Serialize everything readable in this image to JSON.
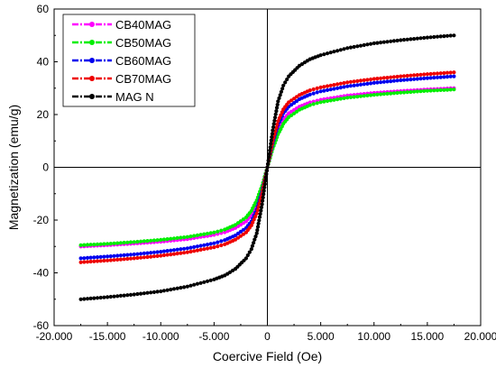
{
  "chart_data": {
    "type": "scatter",
    "xlabel": "Coercive Field (Oe)",
    "ylabel": "Magnetization (emu/g)",
    "xlim": [
      -20000,
      20000
    ],
    "ylim": [
      -60,
      60
    ],
    "x_ticks": [
      -20000,
      -15000,
      -10000,
      -5000,
      0,
      5000,
      10000,
      15000,
      20000
    ],
    "x_tick_labels": [
      "-20.000",
      "-15.000",
      "-10.000",
      "-5.000",
      "0",
      "5.000",
      "10.000",
      "15.000",
      "20.000"
    ],
    "y_ticks": [
      -60,
      -40,
      -20,
      0,
      20,
      40,
      60
    ],
    "y_tick_labels": [
      "-60",
      "-40",
      "-20",
      "0",
      "20",
      "40",
      "60"
    ],
    "zero_lines": true,
    "legend_position": "top-left",
    "series": [
      {
        "name": "CB40MAG",
        "color": "#ff00ff",
        "points": [
          [
            -17500,
            -30
          ],
          [
            -15000,
            -29.5
          ],
          [
            -12500,
            -28.9
          ],
          [
            -10000,
            -28.2
          ],
          [
            -7500,
            -27.2
          ],
          [
            -5000,
            -25.6
          ],
          [
            -4000,
            -24.6
          ],
          [
            -3000,
            -23
          ],
          [
            -2000,
            -20.5
          ],
          [
            -1500,
            -18
          ],
          [
            -1000,
            -14
          ],
          [
            -500,
            -8
          ],
          [
            0,
            0
          ],
          [
            500,
            8
          ],
          [
            1000,
            14
          ],
          [
            1500,
            18
          ],
          [
            2000,
            20.5
          ],
          [
            3000,
            23
          ],
          [
            4000,
            24.6
          ],
          [
            5000,
            25.6
          ],
          [
            7500,
            27.2
          ],
          [
            10000,
            28.2
          ],
          [
            12500,
            28.9
          ],
          [
            15000,
            29.5
          ],
          [
            17500,
            30
          ]
        ]
      },
      {
        "name": "CB50MAG",
        "color": "#00ee00",
        "points": [
          [
            -17500,
            -29.5
          ],
          [
            -15000,
            -29
          ],
          [
            -12500,
            -28.3
          ],
          [
            -10000,
            -27.5
          ],
          [
            -7500,
            -26.4
          ],
          [
            -5000,
            -24.7
          ],
          [
            -4000,
            -23.6
          ],
          [
            -3000,
            -21.8
          ],
          [
            -2000,
            -19
          ],
          [
            -1500,
            -16.5
          ],
          [
            -1000,
            -12.5
          ],
          [
            -500,
            -7
          ],
          [
            0,
            0
          ],
          [
            500,
            7
          ],
          [
            1000,
            12.5
          ],
          [
            1500,
            16.5
          ],
          [
            2000,
            19
          ],
          [
            3000,
            21.8
          ],
          [
            4000,
            23.6
          ],
          [
            5000,
            24.7
          ],
          [
            7500,
            26.4
          ],
          [
            10000,
            27.5
          ],
          [
            12500,
            28.3
          ],
          [
            15000,
            29
          ],
          [
            17500,
            29.5
          ]
        ]
      },
      {
        "name": "CB60MAG",
        "color": "#0000ee",
        "points": [
          [
            -17500,
            -34.5
          ],
          [
            -15000,
            -33.8
          ],
          [
            -12500,
            -33
          ],
          [
            -10000,
            -32
          ],
          [
            -7500,
            -30.7
          ],
          [
            -5000,
            -28.8
          ],
          [
            -4000,
            -27.6
          ],
          [
            -3000,
            -25.8
          ],
          [
            -2000,
            -23
          ],
          [
            -1500,
            -20.5
          ],
          [
            -1000,
            -16
          ],
          [
            -500,
            -9
          ],
          [
            0,
            0
          ],
          [
            500,
            9
          ],
          [
            1000,
            16
          ],
          [
            1500,
            20.5
          ],
          [
            2000,
            23
          ],
          [
            3000,
            25.8
          ],
          [
            4000,
            27.6
          ],
          [
            5000,
            28.8
          ],
          [
            7500,
            30.7
          ],
          [
            10000,
            32
          ],
          [
            12500,
            33
          ],
          [
            15000,
            33.8
          ],
          [
            17500,
            34.5
          ]
        ]
      },
      {
        "name": "CB70MAG",
        "color": "#ee0000",
        "points": [
          [
            -17500,
            -36
          ],
          [
            -15000,
            -35.3
          ],
          [
            -12500,
            -34.5
          ],
          [
            -10000,
            -33.5
          ],
          [
            -7500,
            -32.2
          ],
          [
            -5000,
            -30.3
          ],
          [
            -4000,
            -29.2
          ],
          [
            -3000,
            -27.4
          ],
          [
            -2000,
            -24.7
          ],
          [
            -1500,
            -22
          ],
          [
            -1000,
            -17.5
          ],
          [
            -500,
            -10
          ],
          [
            0,
            0
          ],
          [
            500,
            10
          ],
          [
            1000,
            17.5
          ],
          [
            1500,
            22
          ],
          [
            2000,
            24.7
          ],
          [
            3000,
            27.4
          ],
          [
            4000,
            29.2
          ],
          [
            5000,
            30.3
          ],
          [
            7500,
            32.2
          ],
          [
            10000,
            33.5
          ],
          [
            12500,
            34.5
          ],
          [
            15000,
            35.3
          ],
          [
            17500,
            36
          ]
        ]
      },
      {
        "name": "MAG N",
        "color": "#000000",
        "points": [
          [
            -17500,
            -50
          ],
          [
            -15000,
            -49.2
          ],
          [
            -12500,
            -48.2
          ],
          [
            -10000,
            -47
          ],
          [
            -7500,
            -45.2
          ],
          [
            -5000,
            -42.5
          ],
          [
            -4000,
            -41
          ],
          [
            -3000,
            -38.5
          ],
          [
            -2000,
            -34.5
          ],
          [
            -1500,
            -31
          ],
          [
            -1000,
            -25
          ],
          [
            -500,
            -14
          ],
          [
            0,
            0
          ],
          [
            500,
            14
          ],
          [
            1000,
            25
          ],
          [
            1500,
            31
          ],
          [
            2000,
            34.5
          ],
          [
            3000,
            38.5
          ],
          [
            4000,
            41
          ],
          [
            5000,
            42.5
          ],
          [
            7500,
            45.2
          ],
          [
            10000,
            47
          ],
          [
            12500,
            48.2
          ],
          [
            15000,
            49.2
          ],
          [
            17500,
            50
          ]
        ]
      }
    ]
  }
}
